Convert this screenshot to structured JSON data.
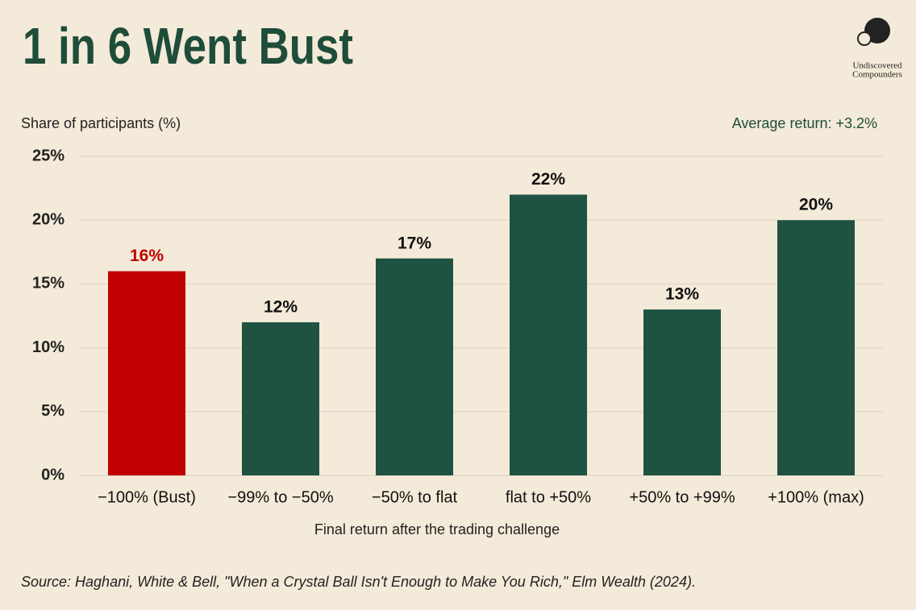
{
  "chart_data": {
    "type": "bar",
    "title": "1 in 6 Went Bust",
    "y_label": "Share of participants (%)",
    "annotation": "Average return: +3.2%",
    "x_label": "Final return after the trading challenge",
    "source": "Source: Haghani, White & Bell, \"When a Crystal Ball Isn't Enough to Make You Rich,\" Elm Wealth (2024).",
    "logo": [
      "Undiscovered",
      "Compounders"
    ],
    "categories": [
      "−100% (Bust)",
      "−99% to −50%",
      "−50% to flat",
      "flat to +50%",
      "+50% to +99%",
      "+100% (max)"
    ],
    "values": [
      16,
      12,
      17,
      22,
      13,
      20
    ],
    "value_labels": [
      "16%",
      "12%",
      "17%",
      "22%",
      "13%",
      "20%"
    ],
    "colors": [
      "#c00000",
      "#1f5240",
      "#1f5240",
      "#1f5240",
      "#1f5240",
      "#1f5240"
    ],
    "label_colors": [
      "#c00000",
      "#111111",
      "#111111",
      "#111111",
      "#111111",
      "#111111"
    ],
    "ylim": [
      0,
      25
    ],
    "yticks": [
      {
        "value": 0,
        "label": "0%"
      },
      {
        "value": 5,
        "label": "5%"
      },
      {
        "value": 10,
        "label": "10%"
      },
      {
        "value": 15,
        "label": "15%"
      },
      {
        "value": 20,
        "label": "20%"
      },
      {
        "value": 25,
        "label": "25%"
      }
    ],
    "grid": true
  }
}
